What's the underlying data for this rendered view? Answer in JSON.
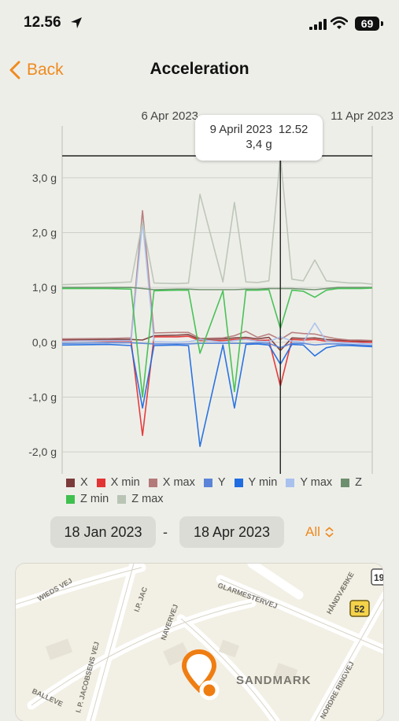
{
  "status_bar": {
    "time": "12.56",
    "battery": "69"
  },
  "nav": {
    "back_label": "Back",
    "title": "Acceleration"
  },
  "chart_data": {
    "type": "line",
    "top_dates": [
      "6 Apr 2023",
      "11 Apr 2023"
    ],
    "y_ticks": [
      "3,0 g",
      "2,0 g",
      "1,0 g",
      "0,0 g",
      "-1,0 g",
      "-2,0 g"
    ],
    "ylim": [
      -2.4,
      3.4
    ],
    "tooltip": {
      "date": "9 April 2023",
      "time": "12.52",
      "value": "3,4 g"
    },
    "x": [
      0,
      4,
      6,
      7,
      8,
      10,
      11,
      12,
      14,
      15,
      16,
      17,
      18,
      19,
      20,
      21,
      22,
      23,
      24,
      25,
      26,
      27
    ],
    "series": [
      {
        "name": "X",
        "color": "#7b3b3b",
        "values": [
          0.05,
          0.05,
          0.05,
          0.04,
          0.12,
          0.13,
          0.14,
          0.05,
          0.06,
          0.08,
          0.09,
          0.06,
          0.09,
          -0.15,
          0.08,
          0.07,
          0.08,
          0.05,
          0.04,
          0.03,
          0.02,
          0.02
        ]
      },
      {
        "name": "X min",
        "color": "#e23434",
        "values": [
          0.03,
          0.02,
          0.02,
          -1.7,
          0.1,
          0.1,
          0.11,
          0.03,
          0.03,
          0.05,
          0.06,
          0.03,
          0.04,
          -0.8,
          0.05,
          0.04,
          0.05,
          0.02,
          0.02,
          0.01,
          0.0,
          0.0
        ]
      },
      {
        "name": "X max",
        "color": "#b47a7a",
        "values": [
          0.06,
          0.07,
          0.08,
          2.4,
          0.17,
          0.18,
          0.18,
          0.07,
          0.08,
          0.12,
          0.2,
          0.09,
          0.15,
          0.05,
          0.18,
          0.16,
          0.15,
          0.1,
          0.06,
          0.04,
          0.04,
          0.03
        ]
      },
      {
        "name": "Y",
        "color": "#5b84d8",
        "values": [
          -0.02,
          -0.01,
          -0.01,
          -0.02,
          -0.03,
          -0.03,
          -0.03,
          -0.02,
          -0.02,
          -0.02,
          -0.02,
          -0.01,
          -0.02,
          -0.1,
          -0.02,
          -0.02,
          -0.05,
          -0.03,
          -0.03,
          -0.04,
          -0.05,
          -0.06
        ]
      },
      {
        "name": "Y min",
        "color": "#1f6de0",
        "values": [
          -0.05,
          -0.04,
          -0.06,
          -1.2,
          -0.06,
          -0.05,
          -0.06,
          -1.9,
          -0.05,
          -1.2,
          -0.04,
          -0.03,
          -0.05,
          -0.4,
          -0.04,
          -0.05,
          -0.25,
          -0.1,
          -0.06,
          -0.06,
          -0.07,
          -0.08
        ]
      },
      {
        "name": "Y max",
        "color": "#a9c1ee",
        "values": [
          0.02,
          0.03,
          0.03,
          2.2,
          0.01,
          0.0,
          0.01,
          0.05,
          0.0,
          0.03,
          0.05,
          0.02,
          0.01,
          0.1,
          0.02,
          0.0,
          0.35,
          0.02,
          0.0,
          -0.01,
          -0.02,
          -0.03
        ]
      },
      {
        "name": "Z",
        "color": "#6d8f6d",
        "values": [
          1.0,
          1.0,
          1.0,
          0.98,
          0.96,
          0.97,
          0.97,
          0.96,
          0.96,
          0.96,
          0.97,
          0.97,
          0.98,
          0.98,
          0.98,
          0.97,
          0.96,
          0.98,
          1.0,
          1.0,
          1.0,
          1.0
        ]
      },
      {
        "name": "Z min",
        "color": "#3fc04f",
        "values": [
          0.98,
          0.98,
          0.97,
          -1.0,
          0.94,
          0.95,
          0.95,
          -0.2,
          0.94,
          -0.9,
          0.95,
          0.95,
          0.96,
          0.25,
          0.95,
          0.93,
          0.82,
          0.95,
          0.98,
          0.98,
          0.98,
          0.99
        ]
      },
      {
        "name": "Z max",
        "color": "#b9c4b5",
        "values": [
          1.05,
          1.08,
          1.1,
          2.2,
          1.08,
          1.07,
          1.08,
          2.7,
          1.1,
          2.55,
          1.1,
          1.09,
          1.12,
          3.4,
          1.15,
          1.12,
          1.5,
          1.12,
          1.1,
          1.08,
          1.08,
          1.06
        ]
      }
    ]
  },
  "date_range": {
    "start": "18 Jan 2023",
    "separator": "-",
    "end": "18 Apr 2023",
    "period": "All"
  },
  "map": {
    "streets": [
      "WIEDS VEJ",
      "I.P. JAC",
      "GLARMESTERVEJ",
      "HÅNDVÆRKE",
      "NAVERVEJ",
      "I. P. JACOBSENS VEJ",
      "NORDRE RINGVEJ",
      "BALLEVE"
    ],
    "place": "SANDMARK",
    "route_badges": [
      "19",
      "52"
    ]
  }
}
